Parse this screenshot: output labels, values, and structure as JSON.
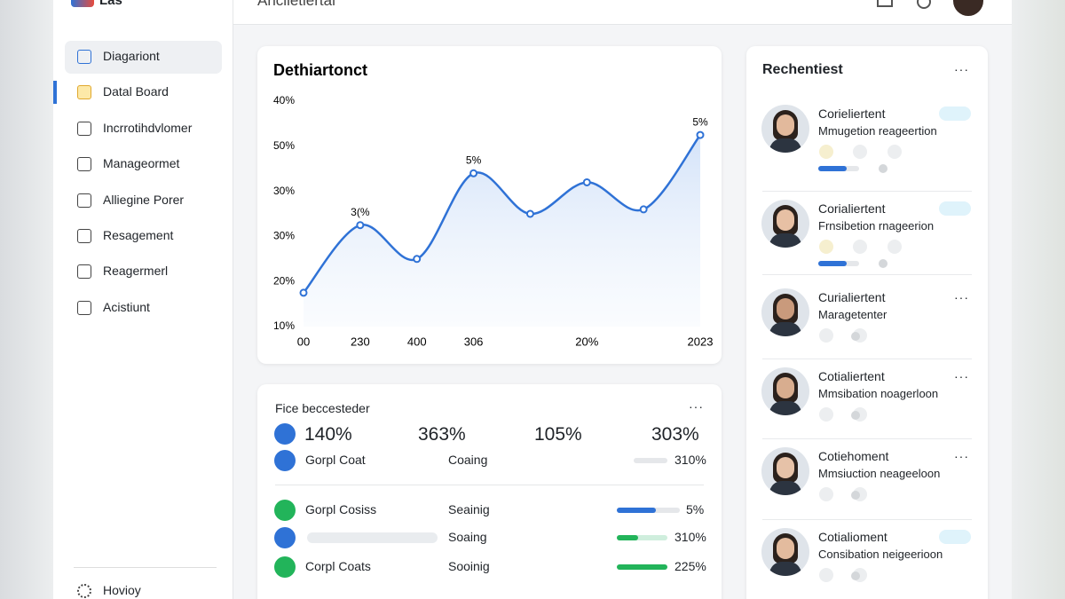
{
  "header": {
    "logo": "Las",
    "title": "Anclietiertal"
  },
  "sidebar": {
    "items": [
      "Diagariont",
      "Datal Board",
      "Incrrotihdvlomer",
      "Manageormet",
      "Alliegine Porer",
      "Resagement",
      "Reagermerl",
      "Acistiunt"
    ],
    "footer": "Hovioy"
  },
  "chart_data": {
    "type": "line",
    "title": "Dethiartonct",
    "categories": [
      "00",
      "230",
      "400",
      "306",
      null,
      "20%",
      null,
      "2023"
    ],
    "values": [
      15,
      45,
      30,
      68,
      50,
      64,
      52,
      85
    ],
    "y_labels": [
      "40%",
      "50%",
      "30%",
      "30%",
      "20%",
      "10%"
    ],
    "ylim": [
      0,
      100
    ],
    "color": "#2f72d6",
    "annotations": [
      "3(%",
      "5%",
      "5%"
    ]
  },
  "summary": {
    "title": "Fice beccesteder",
    "stats": [
      "140%",
      "363%",
      "105%",
      "303%"
    ],
    "rows": [
      {
        "name": "Gorpl Coat",
        "status": "Coaing",
        "value": "310%"
      },
      {
        "name": "Gorpl Cosiss",
        "status": "Seainig",
        "value": "5%"
      },
      {
        "status": "Soaing",
        "value": "310%"
      },
      {
        "name": "Corpl Coats",
        "status": "Sooinig",
        "value": "225%"
      }
    ]
  },
  "recent": {
    "title": "Rechentiest",
    "people": [
      {
        "name": "Corieliertent",
        "role": "Mmugetion reageertion"
      },
      {
        "name": "Corialiertent",
        "role": "Frnsibetion rnageerion"
      },
      {
        "name": "Curialiertent",
        "role": "Maragetenter"
      },
      {
        "name": "Cotialiertent",
        "role": "Mmsibation noagerloon"
      },
      {
        "name": "Cotiehoment",
        "role": "Mmsiuction neageeloon"
      },
      {
        "name": "Cotialioment",
        "role": "Consibation neigeerioon"
      }
    ]
  }
}
